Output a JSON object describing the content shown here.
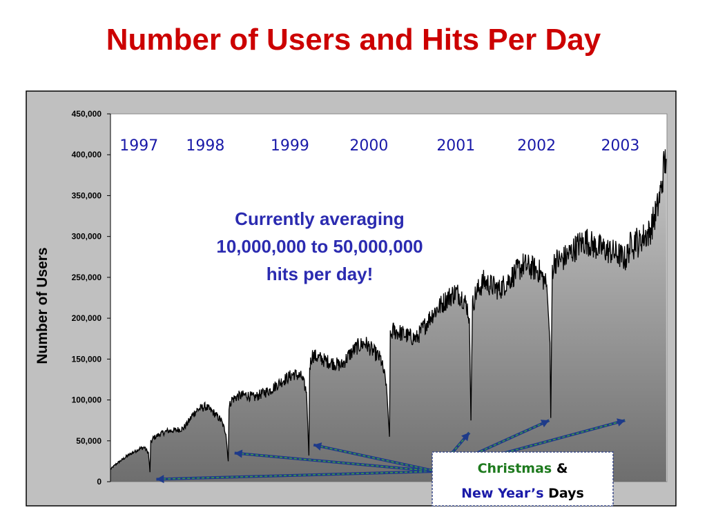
{
  "title": "Number of Users and Hits Per Day",
  "colors": {
    "title": "#cc0000",
    "frame_bg": "#c0c0c0",
    "plot_bg": "#ffffff",
    "area_fill_top": "#c8c8c8",
    "area_fill_bottom": "#6e6e6e",
    "line": "#000000",
    "year_labels": "#1a1aa8",
    "annotation": "#2b2bb0",
    "callout_green": "#1e7a1e",
    "callout_blue": "#1a1aa8",
    "arrow": "#1e3a8a"
  },
  "chart_data": {
    "type": "area",
    "title": "Number of Users and Hits Per Day",
    "xlabel": "",
    "ylabel": "Number of Users",
    "ylim": [
      0,
      450000
    ],
    "yticks": [
      0,
      50000,
      100000,
      150000,
      200000,
      250000,
      300000,
      350000,
      400000,
      450000
    ],
    "ytick_labels": [
      "0",
      "50,000",
      "100,000",
      "150,000",
      "200,000",
      "250,000",
      "300,000",
      "350,000",
      "400,000",
      "450,000"
    ],
    "xlim": [
      1996.88,
      2003.92
    ],
    "grid": false,
    "year_labels": [
      {
        "text": "1997",
        "x": 1997.24
      },
      {
        "text": "1998",
        "x": 1998.08
      },
      {
        "text": "1999",
        "x": 1999.15
      },
      {
        "text": "2000",
        "x": 2000.15
      },
      {
        "text": "2001",
        "x": 2001.25
      },
      {
        "text": "2002",
        "x": 2002.27
      },
      {
        "text": "2003",
        "x": 2003.33
      }
    ],
    "series": [
      {
        "values": {
          "x": [
            1996.88,
            1996.92,
            1996.97,
            1997.03,
            1997.1,
            1997.17,
            1997.24,
            1997.31,
            1997.36,
            1997.38,
            1997.39,
            1997.42,
            1997.5,
            1997.6,
            1997.7,
            1997.8,
            1997.88,
            1997.92,
            1997.98,
            1998.08,
            1998.18,
            1998.28,
            1998.34,
            1998.37,
            1998.38,
            1998.41,
            1998.5,
            1998.6,
            1998.7,
            1998.8,
            1998.9,
            1998.98,
            1999.08,
            1999.2,
            1999.3,
            1999.36,
            1999.39,
            1999.4,
            1999.43,
            1999.5,
            1999.6,
            1999.7,
            1999.8,
            1999.9,
            2000.0,
            2000.1,
            2000.2,
            2000.3,
            2000.37,
            2000.41,
            2000.42,
            2000.45,
            2000.55,
            2000.65,
            2000.75,
            2000.85,
            2000.95,
            2001.05,
            2001.15,
            2001.25,
            2001.33,
            2001.39,
            2001.42,
            2001.44,
            2001.46,
            2001.5,
            2001.6,
            2001.7,
            2001.8,
            2001.9,
            2002.0,
            2002.1,
            2002.2,
            2002.3,
            2002.4,
            2002.44,
            2002.45,
            2002.47,
            2002.5,
            2002.6,
            2002.7,
            2002.8,
            2002.9,
            2003.0,
            2003.1,
            2003.2,
            2003.3,
            2003.4,
            2003.46,
            2003.49,
            2003.5,
            2003.52,
            2003.56,
            2003.6,
            2003.7,
            2003.8,
            2003.85,
            2003.88,
            2003.91
          ],
          "y": [
            15000,
            19000,
            23000,
            27000,
            32000,
            36000,
            40000,
            42000,
            35000,
            12000,
            48000,
            53000,
            58000,
            62000,
            63000,
            65000,
            75000,
            82000,
            88000,
            92000,
            85000,
            75000,
            60000,
            25000,
            90000,
            100000,
            105000,
            106000,
            103000,
            108000,
            112000,
            118000,
            125000,
            132000,
            128000,
            110000,
            32000,
            140000,
            155000,
            152000,
            148000,
            145000,
            142000,
            155000,
            165000,
            170000,
            160000,
            150000,
            120000,
            55000,
            175000,
            185000,
            182000,
            178000,
            175000,
            190000,
            205000,
            215000,
            225000,
            232000,
            226000,
            215000,
            200000,
            75000,
            215000,
            230000,
            245000,
            240000,
            235000,
            245000,
            255000,
            265000,
            262000,
            258000,
            240000,
            170000,
            78000,
            260000,
            270000,
            272000,
            280000,
            290000,
            295000,
            288000,
            285000,
            282000,
            278000,
            272000,
            290000,
            300000,
            285000,
            300000,
            290000,
            298000,
            305000,
            335000,
            360000,
            385000,
            395000
          ]
        }
      }
    ],
    "annotations": [
      {
        "lines": [
          "Currently averaging",
          "10,000,000 to 50,000,000",
          "hits per day!"
        ]
      }
    ],
    "callout": {
      "line1_a": "Christmas",
      "line1_b": "&",
      "line2_a": "New Year’s",
      "line2_b": "Days",
      "arrow_targets": [
        {
          "x": 1997.46,
          "y": 3000
        },
        {
          "x": 1998.45,
          "y": 35000
        },
        {
          "x": 1999.45,
          "y": 45000
        },
        {
          "x": 2001.42,
          "y": 60000
        },
        {
          "x": 2002.43,
          "y": 75000
        },
        {
          "x": 2003.39,
          "y": 75000
        }
      ]
    }
  }
}
